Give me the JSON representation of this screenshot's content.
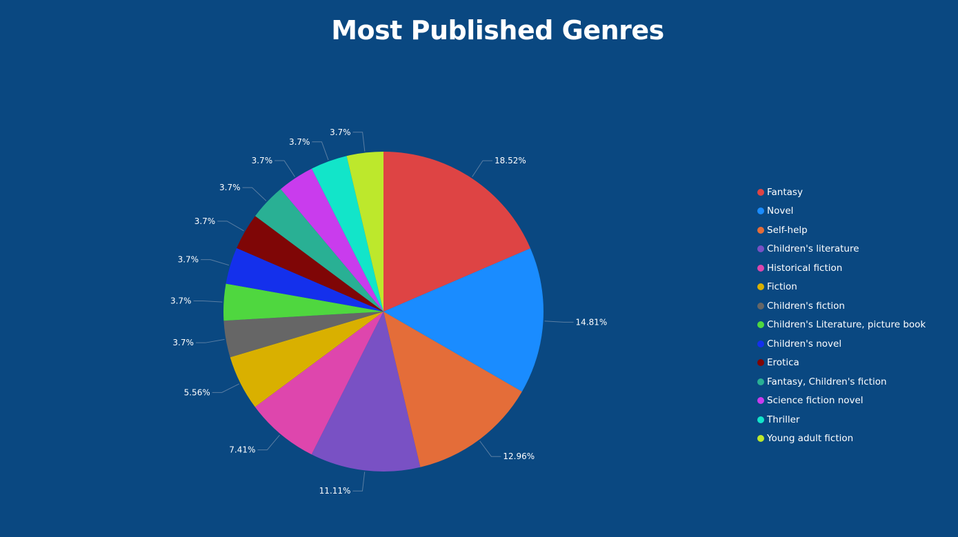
{
  "chart_data": {
    "type": "pie",
    "title": "Most Published Genres",
    "start_angle_deg": 0,
    "direction": "clockwise",
    "legend_position": "right",
    "slices": [
      {
        "label": "Fantasy",
        "value": 18.52,
        "display": "18.52%",
        "color": "#de4444"
      },
      {
        "label": "Novel",
        "value": 14.81,
        "display": "14.81%",
        "color": "#1a8cff"
      },
      {
        "label": "Self-help",
        "value": 12.96,
        "display": "12.96%",
        "color": "#e46d39"
      },
      {
        "label": "Children's literature",
        "value": 11.11,
        "display": "11.11%",
        "color": "#7951c4"
      },
      {
        "label": "Historical fiction",
        "value": 7.41,
        "display": "7.41%",
        "color": "#de46ad"
      },
      {
        "label": "Fiction",
        "value": 5.56,
        "display": "5.56%",
        "color": "#d9b000"
      },
      {
        "label": "Children's fiction",
        "value": 3.7,
        "display": "3.7%",
        "color": "#666666"
      },
      {
        "label": "Children's Literature, picture book",
        "value": 3.7,
        "display": "3.7%",
        "color": "#4fd73f"
      },
      {
        "label": "Children's novel",
        "value": 3.7,
        "display": "3.7%",
        "color": "#1430ec"
      },
      {
        "label": "Erotica",
        "value": 3.7,
        "display": "3.7%",
        "color": "#7f0606"
      },
      {
        "label": "Fantasy, Children's fiction",
        "value": 3.7,
        "display": "3.7%",
        "color": "#29b094"
      },
      {
        "label": "Science fiction novel",
        "value": 3.7,
        "display": "3.7%",
        "color": "#c93ced"
      },
      {
        "label": "Thriller",
        "value": 3.7,
        "display": "3.7%",
        "color": "#12e5c9"
      },
      {
        "label": "Young adult fiction",
        "value": 3.7,
        "display": "3.7%",
        "color": "#bde82c"
      }
    ]
  },
  "colors": {
    "background": "#0a4881",
    "text": "#ffffff",
    "leader_line": "#5a7ea3"
  }
}
